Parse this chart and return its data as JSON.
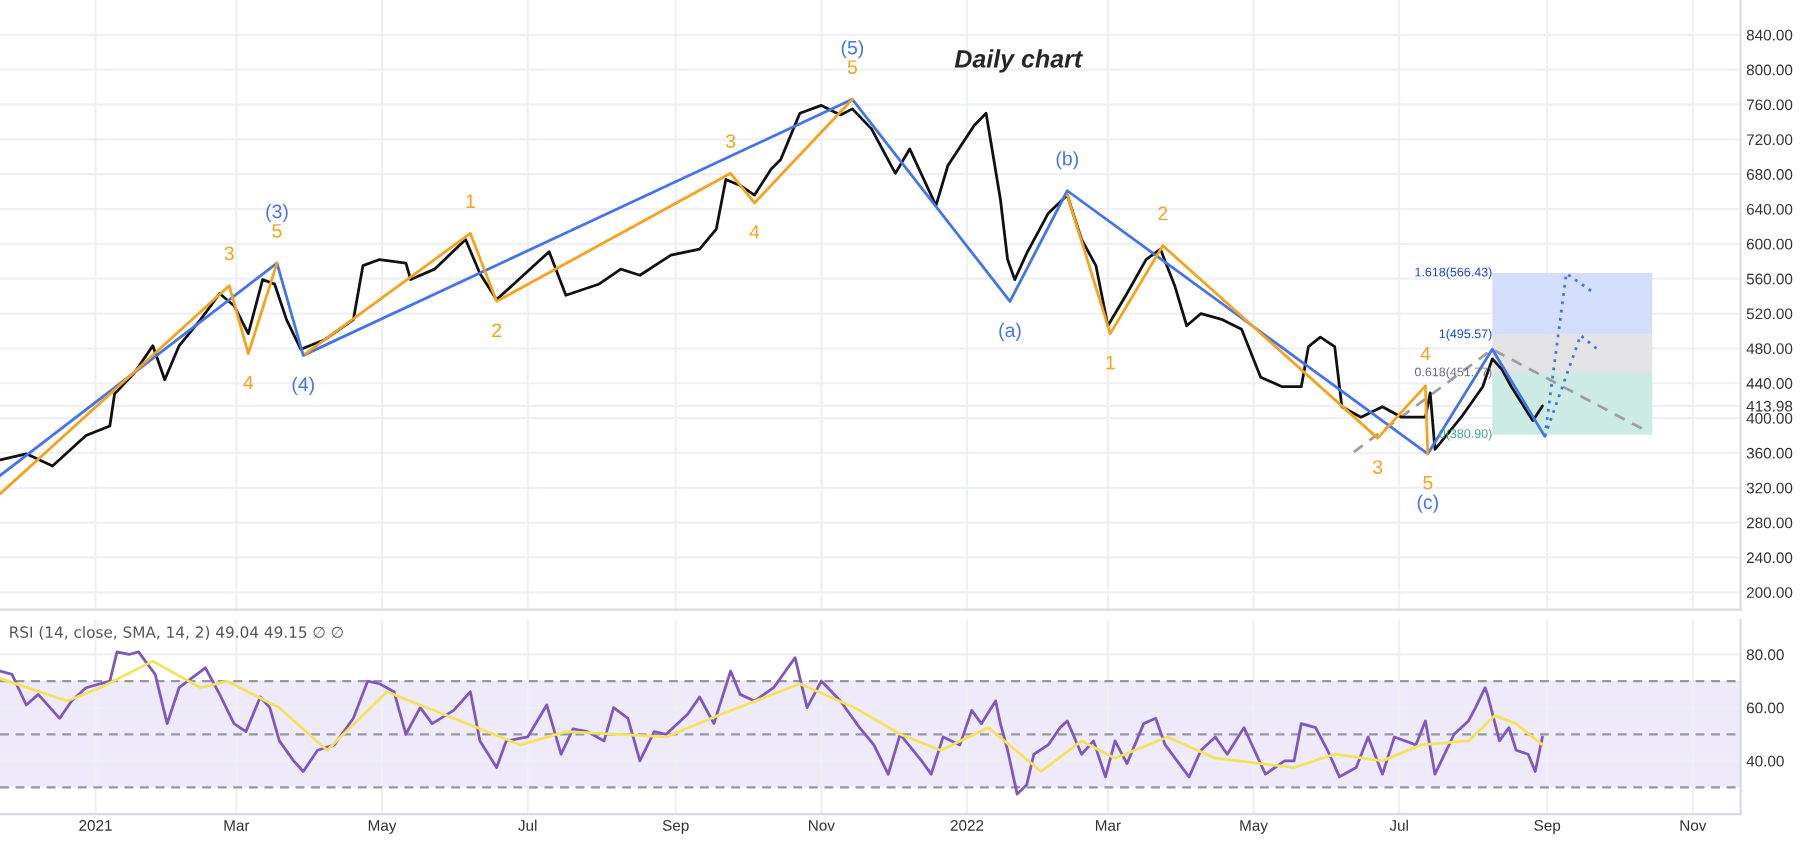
{
  "chart_data": [
    {
      "type": "line",
      "title": "Daily chart",
      "grid": true,
      "tick_labels": "y",
      "legend": false,
      "xlim": [
        "2020-11-22",
        "2022-11-21"
      ],
      "ylim": [
        180,
        880
      ],
      "xticks": [
        {
          "value": "2021-01-01",
          "label": null
        },
        {
          "value": "2021-03-01",
          "label": null
        },
        {
          "value": "2021-05-01",
          "label": null
        },
        {
          "value": "2021-07-01",
          "label": null
        },
        {
          "value": "2021-09-01",
          "label": null
        },
        {
          "value": "2021-11-01",
          "label": null
        },
        {
          "value": "2022-01-01",
          "label": null
        },
        {
          "value": "2022-03-01",
          "label": null
        },
        {
          "value": "2022-05-01",
          "label": null
        },
        {
          "value": "2022-07-01",
          "label": null
        },
        {
          "value": "2022-09-01",
          "label": null
        },
        {
          "value": "2022-11-01",
          "label": null
        }
      ],
      "yticks": [
        {
          "value": 200,
          "label": "200.00"
        },
        {
          "value": 240,
          "label": "240.00"
        },
        {
          "value": 280,
          "label": "280.00"
        },
        {
          "value": 320,
          "label": "320.00"
        },
        {
          "value": 360,
          "label": "360.00"
        },
        {
          "value": 400,
          "label": "400.00"
        },
        {
          "value": 413.98,
          "label": "413.98"
        },
        {
          "value": 440,
          "label": "440.00"
        },
        {
          "value": 480,
          "label": "480.00"
        },
        {
          "value": 520,
          "label": "520.00"
        },
        {
          "value": 560,
          "label": "560.00"
        },
        {
          "value": 600,
          "label": "600.00"
        },
        {
          "value": 640,
          "label": "640.00"
        },
        {
          "value": 680,
          "label": "680.00"
        },
        {
          "value": 720,
          "label": "720.00"
        },
        {
          "value": 760,
          "label": "760.00"
        },
        {
          "value": 800,
          "label": "800.00"
        },
        {
          "value": 840,
          "label": "840.00"
        }
      ],
      "series": [
        {
          "type": "line",
          "color": "#d3defb",
          "x": [
            "2022-08-09",
            "2022-10-15"
          ],
          "values": [
            null,
            null
          ],
          "upper": [
            566.43,
            566.43
          ],
          "lower": [
            495.57,
            495.57
          ]
        },
        {
          "type": "line",
          "color": "#e3e3e6",
          "x": [
            "2022-08-09",
            "2022-10-15"
          ],
          "values": [
            null,
            null
          ],
          "upper": [
            495.57,
            495.57
          ],
          "lower": [
            451.77,
            451.77
          ]
        },
        {
          "type": "line",
          "color": "#cdebe5",
          "x": [
            "2022-08-09",
            "2022-10-15"
          ],
          "values": [
            null,
            null
          ],
          "upper": [
            451.77,
            451.77
          ],
          "lower": [
            380.9,
            380.9
          ]
        },
        {
          "type": "line",
          "color": "#9e9e9e",
          "line_style": "dashed",
          "x": [
            "2022-06-12",
            "2022-08-09",
            "2022-10-12"
          ],
          "values": [
            361,
            479,
            386
          ]
        },
        {
          "type": "line",
          "color": "#111111",
          "x": [
            "2020-11-22",
            "2020-12-03",
            "2020-12-14",
            "2020-12-28",
            "2021-01-07",
            "2021-01-09",
            "2021-01-17",
            "2021-01-25",
            "2021-01-30",
            "2021-02-05",
            "2021-02-14",
            "2021-02-22",
            "2021-02-28",
            "2021-03-06",
            "2021-03-12",
            "2021-03-17",
            "2021-03-22",
            "2021-03-28",
            "2021-04-07",
            "2021-04-19",
            "2021-04-23",
            "2021-04-30",
            "2021-05-11",
            "2021-05-13",
            "2021-05-23",
            "2021-06-05",
            "2021-06-11",
            "2021-06-18",
            "2021-06-30",
            "2021-07-10",
            "2021-07-17",
            "2021-07-31",
            "2021-08-09",
            "2021-08-17",
            "2021-08-30",
            "2021-09-11",
            "2021-09-18",
            "2021-09-22",
            "2021-09-28",
            "2021-10-04",
            "2021-10-11",
            "2021-10-15",
            "2021-10-23",
            "2021-11-01",
            "2021-11-09",
            "2021-11-14",
            "2021-11-22",
            "2021-12-02",
            "2021-12-08",
            "2021-12-19",
            "2021-12-24",
            "2022-01-04",
            "2022-01-09",
            "2022-01-15",
            "2022-01-18",
            "2022-01-21",
            "2022-01-26",
            "2022-02-04",
            "2022-02-12",
            "2022-02-18",
            "2022-02-24",
            "2022-03-01",
            "2022-03-09",
            "2022-03-17",
            "2022-03-23",
            "2022-03-29",
            "2022-04-03",
            "2022-04-09",
            "2022-04-18",
            "2022-04-26",
            "2022-05-04",
            "2022-05-13",
            "2022-05-21",
            "2022-05-24",
            "2022-05-29",
            "2022-06-04",
            "2022-06-07",
            "2022-06-15",
            "2022-06-24",
            "2022-07-02",
            "2022-07-12",
            "2022-07-14",
            "2022-07-16",
            "2022-07-27",
            "2022-08-05",
            "2022-08-09",
            "2022-08-13",
            "2022-08-17",
            "2022-08-26",
            "2022-08-30"
          ],
          "values": [
            352,
            359,
            345,
            380,
            391,
            428,
            451,
            483,
            444,
            483,
            513,
            543,
            529,
            497,
            559,
            554,
            513,
            479,
            490,
            513,
            575,
            582,
            578,
            559,
            571,
            605,
            566,
            536,
            566,
            591,
            541,
            554,
            571,
            564,
            587,
            594,
            617,
            674,
            667,
            656,
            686,
            697,
            750,
            759,
            748,
            755,
            732,
            681,
            709,
            644,
            690,
            736,
            750,
            651,
            582,
            559,
            589,
            635,
            656,
            605,
            575,
            506,
            543,
            582,
            594,
            552,
            506,
            520,
            513,
            502,
            447,
            436,
            436,
            482,
            493,
            482,
            413,
            401,
            413,
            401,
            401,
            429,
            364,
            401,
            436,
            468,
            456,
            436,
            397,
            414
          ]
        },
        {
          "type": "line",
          "color": "#4474ec",
          "x": [
            "2020-11-22",
            "2021-03-18",
            "2021-03-29",
            "2021-11-14",
            "2022-01-19",
            "2022-02-12",
            "2022-07-13",
            "2022-08-09",
            "2022-08-31"
          ],
          "values": [
            334,
            578,
            472,
            766,
            534,
            661,
            359,
            479,
            379
          ]
        },
        {
          "type": "line",
          "color": "#f7a21b",
          "x": [
            "2020-11-22",
            "2021-02-26",
            "2021-03-06",
            "2021-03-18"
          ],
          "values": [
            313,
            552,
            474,
            578
          ]
        },
        {
          "type": "line",
          "color": "#f7a21b",
          "x": [
            "2021-03-30",
            "2021-06-07",
            "2021-06-18",
            "2021-09-24",
            "2021-10-04",
            "2021-11-14"
          ],
          "values": [
            474,
            612,
            534,
            681,
            647,
            766
          ]
        },
        {
          "type": "line",
          "color": "#f7a21b",
          "x": [
            "2022-02-12",
            "2022-03-02",
            "2022-03-24",
            "2022-06-22",
            "2022-07-12",
            "2022-07-13"
          ],
          "values": [
            656,
            497,
            598,
            377,
            437,
            359
          ]
        },
        {
          "type": "line",
          "color": "#4474ec",
          "line_style": "dotted",
          "x": [
            "2022-08-31",
            "2022-09-09",
            "2022-09-21"
          ],
          "values": [
            379,
            566,
            543
          ]
        },
        {
          "type": "line",
          "color": "#4474ec",
          "line_style": "dotted",
          "x": [
            "2022-08-31",
            "2022-09-15",
            "2022-09-22"
          ],
          "values": [
            379,
            495,
            479
          ]
        }
      ],
      "annotations": [
        {
          "text": "(5)",
          "x": "2021-11-14",
          "y": 766
        },
        {
          "text": "5",
          "x": "2021-11-14",
          "y": 766
        },
        {
          "text": "(3)",
          "x": "2021-03-18",
          "y": 578
        },
        {
          "text": "5",
          "x": "2021-03-18",
          "y": 578
        },
        {
          "text": "3",
          "x": "2021-02-26",
          "y": 552
        },
        {
          "text": "4",
          "x": "2021-03-06",
          "y": 474
        },
        {
          "text": "(4)",
          "x": "2021-03-29",
          "y": 472
        },
        {
          "text": "1",
          "x": "2021-06-07",
          "y": 612
        },
        {
          "text": "2",
          "x": "2021-06-18",
          "y": 534
        },
        {
          "text": "3",
          "x": "2021-09-24",
          "y": 681
        },
        {
          "text": "4",
          "x": "2021-10-04",
          "y": 647
        },
        {
          "text": "(a)",
          "x": "2022-01-19",
          "y": 534
        },
        {
          "text": "(b)",
          "x": "2022-02-12",
          "y": 661
        },
        {
          "text": "1",
          "x": "2022-03-02",
          "y": 497
        },
        {
          "text": "2",
          "x": "2022-03-24",
          "y": 598
        },
        {
          "text": "3",
          "x": "2022-06-22",
          "y": 377
        },
        {
          "text": "4",
          "x": "2022-07-12",
          "y": 437
        },
        {
          "text": "5",
          "x": "2022-07-13",
          "y": 359
        },
        {
          "text": "(c)",
          "x": "2022-07-13",
          "y": 359
        },
        {
          "text": "1.618(566.43)",
          "x": "2022-08-09",
          "y": 566.43
        },
        {
          "text": "1(495.57)",
          "x": "2022-08-09",
          "y": 495.57
        },
        {
          "text": "0.618(451.77)",
          "x": "2022-08-09",
          "y": 451.77
        },
        {
          "text": "0(380.90)",
          "x": "2022-08-09",
          "y": 380.9
        }
      ]
    },
    {
      "type": "line",
      "grid": true,
      "legend": false,
      "xlim": [
        "2020-11-22",
        "2022-11-21"
      ],
      "ylim": [
        20,
        93
      ],
      "xticks": [
        {
          "value": "2021-01-01",
          "label": "2021"
        },
        {
          "value": "2021-03-01",
          "label": "Mar"
        },
        {
          "value": "2021-05-01",
          "label": "May"
        },
        {
          "value": "2021-07-01",
          "label": "Jul"
        },
        {
          "value": "2021-09-01",
          "label": "Sep"
        },
        {
          "value": "2021-11-01",
          "label": "Nov"
        },
        {
          "value": "2022-01-01",
          "label": "2022"
        },
        {
          "value": "2022-03-01",
          "label": "Mar"
        },
        {
          "value": "2022-05-01",
          "label": "May"
        },
        {
          "value": "2022-07-01",
          "label": "Jul"
        },
        {
          "value": "2022-09-01",
          "label": "Sep"
        },
        {
          "value": "2022-11-01",
          "label": "Nov"
        }
      ],
      "yticks": [
        {
          "value": 40,
          "label": "40.00"
        },
        {
          "value": 60,
          "label": "60.00"
        },
        {
          "value": 80,
          "label": "80.00"
        }
      ],
      "bands": [
        {
          "axis": "y",
          "from": 30,
          "to": 70,
          "color": "#efeaf9"
        }
      ],
      "ref_lines": [
        {
          "axis": "y",
          "value": 70,
          "color": "#9598a1",
          "line_style": "dashed"
        },
        {
          "axis": "y",
          "value": 50,
          "color": "#9598a1",
          "line_style": "dashed"
        },
        {
          "axis": "y",
          "value": 30,
          "color": "#9598a1",
          "line_style": "dashed"
        }
      ],
      "series": [
        {
          "color": "#7e57c2",
          "x": [
            "2020-11-22",
            "2020-11-27",
            "2020-12-03",
            "2020-12-08",
            "2020-12-17",
            "2020-12-22",
            "2020-12-28",
            "2021-01-07",
            "2021-01-10",
            "2021-01-15",
            "2021-01-19",
            "2021-01-26",
            "2021-01-31",
            "2021-02-05",
            "2021-02-16",
            "2021-02-22",
            "2021-02-28",
            "2021-03-05",
            "2021-03-11",
            "2021-03-15",
            "2021-03-19",
            "2021-03-25",
            "2021-03-29",
            "2021-04-04",
            "2021-04-11",
            "2021-04-19",
            "2021-04-25",
            "2021-04-30",
            "2021-05-06",
            "2021-05-11",
            "2021-05-17",
            "2021-05-22",
            "2021-05-31",
            "2021-06-07",
            "2021-06-11",
            "2021-06-18",
            "2021-06-22",
            "2021-07-01",
            "2021-07-09",
            "2021-07-15",
            "2021-07-20",
            "2021-07-26",
            "2021-08-02",
            "2021-08-06",
            "2021-08-12",
            "2021-08-17",
            "2021-08-23",
            "2021-08-28",
            "2021-09-06",
            "2021-09-11",
            "2021-09-17",
            "2021-09-24",
            "2021-09-28",
            "2021-10-04",
            "2021-10-12",
            "2021-10-21",
            "2021-10-26",
            "2021-11-01",
            "2021-11-09",
            "2021-11-17",
            "2021-11-23",
            "2021-11-29",
            "2021-12-04",
            "2021-12-13",
            "2021-12-17",
            "2021-12-22",
            "2021-12-29",
            "2022-01-03",
            "2022-01-07",
            "2022-01-13",
            "2022-01-15",
            "2022-01-18",
            "2022-01-22",
            "2022-01-26",
            "2022-01-29",
            "2022-02-04",
            "2022-02-09",
            "2022-02-12",
            "2022-02-18",
            "2022-02-23",
            "2022-02-28",
            "2022-03-04",
            "2022-03-09",
            "2022-03-16",
            "2022-03-21",
            "2022-03-25",
            "2022-04-04",
            "2022-04-09",
            "2022-04-15",
            "2022-04-20",
            "2022-04-27",
            "2022-05-06",
            "2022-05-14",
            "2022-05-18",
            "2022-05-21",
            "2022-05-27",
            "2022-06-01",
            "2022-06-06",
            "2022-06-13",
            "2022-06-18",
            "2022-06-24",
            "2022-06-29",
            "2022-07-08",
            "2022-07-12",
            "2022-07-16",
            "2022-07-24",
            "2022-07-30",
            "2022-08-02",
            "2022-08-06",
            "2022-08-07",
            "2022-08-12",
            "2022-08-16",
            "2022-08-19",
            "2022-08-24",
            "2022-08-27",
            "2022-08-30"
          ],
          "values": [
            73.8,
            72.5,
            61,
            65,
            56,
            62.5,
            67.5,
            70,
            81,
            80,
            81,
            72.5,
            54,
            67.5,
            75,
            65,
            54,
            51,
            64,
            60,
            47.5,
            40,
            36,
            44,
            46,
            56,
            70,
            69,
            66,
            50,
            60,
            54,
            59,
            66,
            47.5,
            37.5,
            47.5,
            49,
            61,
            42.5,
            52,
            51,
            47.5,
            60,
            56,
            40,
            51,
            50,
            57.5,
            64,
            54,
            73.8,
            65,
            62.5,
            67.5,
            78.8,
            60,
            70,
            62.5,
            52.5,
            46,
            35,
            50,
            40,
            35,
            49,
            46,
            59,
            54,
            62.5,
            54,
            44,
            27.5,
            31,
            42.5,
            46,
            52.5,
            55,
            42.5,
            47.5,
            34,
            47.5,
            39,
            54,
            56,
            46,
            34,
            44,
            49,
            42.5,
            52.5,
            35,
            40,
            40,
            54,
            52.5,
            44,
            34,
            37.5,
            49,
            35,
            49,
            46,
            55,
            35,
            50,
            55,
            60,
            67.5,
            65,
            47.5,
            52.5,
            44,
            42.5,
            36,
            49
          ]
        },
        {
          "color": "#f2e35a",
          "x": [
            "2020-11-22",
            "2020-12-20",
            "2021-01-03",
            "2021-01-25",
            "2021-02-14",
            "2021-02-25",
            "2021-03-19",
            "2021-04-08",
            "2021-05-03",
            "2021-05-31",
            "2021-06-28",
            "2021-07-17",
            "2021-08-28",
            "2021-09-20",
            "2021-10-23",
            "2021-11-15",
            "2021-12-04",
            "2021-12-21",
            "2022-01-10",
            "2022-02-01",
            "2022-02-18",
            "2022-03-04",
            "2022-03-26",
            "2022-04-15",
            "2022-05-18",
            "2022-06-04",
            "2022-06-24",
            "2022-07-10",
            "2022-07-30",
            "2022-08-10",
            "2022-08-19",
            "2022-08-30"
          ],
          "values": [
            71,
            62.5,
            67.5,
            77.5,
            67.5,
            70,
            60,
            44,
            66,
            56,
            46,
            51,
            49,
            57.5,
            69,
            60,
            50,
            44,
            52.5,
            36,
            47.5,
            41,
            49,
            41,
            37.5,
            42.5,
            40,
            46,
            47.5,
            57,
            54,
            46
          ]
        }
      ],
      "annotations": [
        "RSI (14, close, SMA, 14, 2) 49.04 49.15 ∅ ∅"
      ]
    }
  ]
}
